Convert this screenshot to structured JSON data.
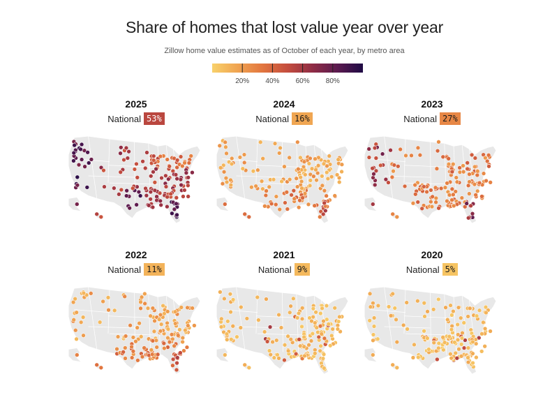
{
  "title": "Share of homes that lost value year over year",
  "subtitle": "Zillow home value estimates as of October of each year, by metro area",
  "legend": {
    "ticks": [
      "20%",
      "40%",
      "60%",
      "80%"
    ],
    "tick_values": [
      20,
      40,
      60,
      80
    ],
    "domain": [
      0,
      100
    ],
    "colors": [
      "#f8d16b",
      "#f0a451",
      "#e2763f",
      "#c44d3e",
      "#8f2c45",
      "#5a1a4f",
      "#1f0b45"
    ]
  },
  "national_label": "National",
  "map_data": {
    "panels": [
      {
        "year": "2025",
        "national": "53%",
        "national_value": 53,
        "seed": 11,
        "mode": "high"
      },
      {
        "year": "2024",
        "national": "16%",
        "national_value": 16,
        "seed": 23,
        "mode": "low"
      },
      {
        "year": "2023",
        "national": "27%",
        "national_value": 27,
        "seed": 37,
        "mode": "mid"
      },
      {
        "year": "2022",
        "national": "11%",
        "national_value": 11,
        "seed": 41,
        "mode": "low"
      },
      {
        "year": "2021",
        "national": "9%",
        "national_value": 9,
        "seed": 53,
        "mode": "vlow"
      },
      {
        "year": "2020",
        "national": "5%",
        "national_value": 5,
        "seed": 67,
        "mode": "vlow"
      }
    ]
  }
}
